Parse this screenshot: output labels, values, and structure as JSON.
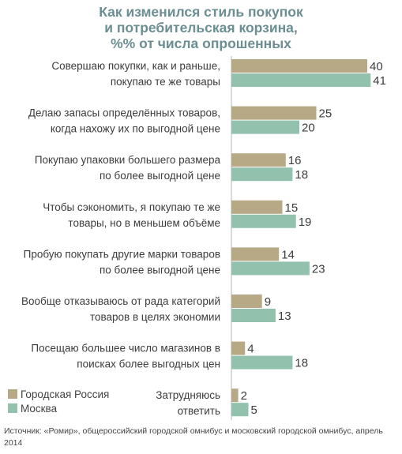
{
  "chart_data": {
    "type": "bar",
    "orientation": "horizontal",
    "title_lines": [
      "Как изменился стиль покупок",
      "и  потребительская корзина,",
      "%% от  числа опрошенных"
    ],
    "categories": [
      [
        "Совершаю покупки, как и раньше,",
        "покупаю те же товары"
      ],
      [
        "Делаю запасы определённых товаров,",
        "когда нахожу их по выгодной цене"
      ],
      [
        "Покупаю упаковки большего размера",
        "по более выгодной цене"
      ],
      [
        "Чтобы сэкономить, я покупаю те же",
        "товары, но в меньшем объёме"
      ],
      [
        "Пробую покупать другие марки товаров",
        "по более выгодной цене"
      ],
      [
        "Вообще отказываюсь от рада категорий",
        "товаров в целях экономии"
      ],
      [
        "Посещаю большее число магазинов в",
        "поисках более выгодных цен"
      ],
      [
        "Затрудняюсь",
        "ответить"
      ]
    ],
    "series": [
      {
        "name": "Городская Россия",
        "color": "#b7a886",
        "values": [
          40,
          25,
          16,
          15,
          14,
          9,
          4,
          2
        ]
      },
      {
        "name": "Москва",
        "color": "#92c2ad",
        "values": [
          41,
          20,
          18,
          19,
          23,
          13,
          18,
          5
        ]
      }
    ],
    "xlim": [
      0,
      41
    ],
    "grid": false,
    "legend_position": "bottom-left",
    "axis_line_color": "#b5b5b5"
  },
  "source_note": "Источник: «Ромир», общероссийский городской омнибус и московский городской омнибус, апрель 2014"
}
